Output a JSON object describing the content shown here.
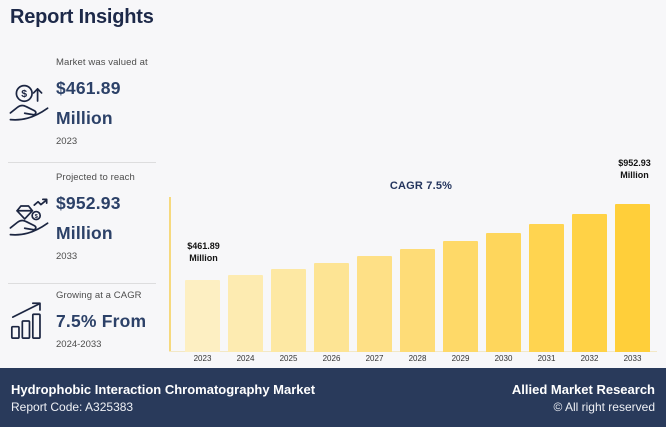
{
  "header": {
    "title": "Report Insights"
  },
  "stats": [
    {
      "label": "Market was valued at",
      "value": "$461.89",
      "unit": "Million",
      "year": "2023",
      "icon": "money-growth-icon"
    },
    {
      "label": "Projected to reach",
      "value": "$952.93",
      "unit": "Million",
      "year": "2033",
      "icon": "diamond-value-icon"
    },
    {
      "label": "Growing at a CAGR",
      "value": "7.5% From",
      "year": "2024-2033",
      "icon": "growth-chart-icon"
    }
  ],
  "chart_data": {
    "type": "bar",
    "title": "",
    "xlabel": "",
    "ylabel": "",
    "unit": "$ Million",
    "categories": [
      "2023",
      "2024",
      "2025",
      "2026",
      "2027",
      "2028",
      "2029",
      "2030",
      "2031",
      "2032",
      "2033"
    ],
    "values": [
      461.89,
      496.5,
      533.8,
      573.8,
      616.9,
      663.1,
      712.9,
      766.3,
      823.8,
      885.6,
      952.93
    ],
    "ylim": [
      0,
      1270
    ],
    "grid": false,
    "legend": false,
    "bar_colors": [
      "#FDEFC2",
      "#FDEBB1",
      "#FDE8A3",
      "#FDE494",
      "#FEE086",
      "#FEDC77",
      "#FED968",
      "#FED65C",
      "#FFD450",
      "#FFD246",
      "#FFCF3A"
    ],
    "annotations": {
      "cagr_label": "CAGR 7.5%",
      "first_bar_label": {
        "line1": "$461.89",
        "line2": "Million"
      },
      "last_bar_label": {
        "line1": "$952.93",
        "line2": "Million"
      }
    }
  },
  "colors": {
    "background": "#f7f7f9",
    "navy_text": "#2c4168",
    "footer_background": "#293a5b",
    "axis_yellow": "#f6d97e"
  },
  "footer": {
    "market_title": "Hydrophobic Interaction Chromatography Market",
    "report_code": "Report Code: A325383",
    "brand": "Allied Market Research",
    "copyright": "© All right reserved"
  }
}
